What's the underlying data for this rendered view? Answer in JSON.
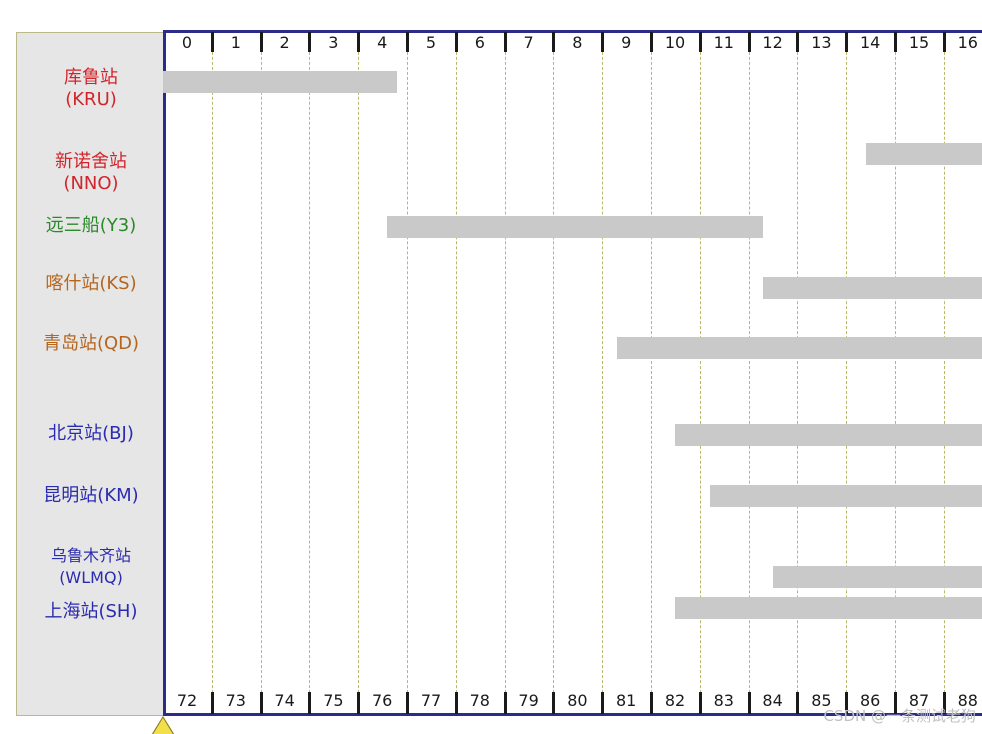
{
  "chart_data": {
    "type": "gantt",
    "top_ticks": [
      "0",
      "1",
      "2",
      "3",
      "4",
      "5",
      "6",
      "7",
      "8",
      "9",
      "10",
      "11",
      "12",
      "13",
      "14",
      "15",
      "16"
    ],
    "bottom_ticks": [
      "72",
      "73",
      "74",
      "75",
      "76",
      "77",
      "78",
      "79",
      "80",
      "81",
      "82",
      "83",
      "84",
      "85",
      "86",
      "87",
      "88"
    ],
    "stations": [
      {
        "label": "库鲁站\n(KRU)",
        "color": "#d4242b",
        "bar_start": 0,
        "bar_end": 4.8
      },
      {
        "label": "新诺舍站\n(NNO)",
        "color": "#d4242b",
        "bar_start": 14.4,
        "bar_end": 16.8
      },
      {
        "label": "远三船(Y3)",
        "color": "#2a8a2a",
        "bar_start": 4.6,
        "bar_end": 12.3
      },
      {
        "label": "喀什站(KS)",
        "color": "#b5651d",
        "bar_start": 12.3,
        "bar_end": 16.8
      },
      {
        "label": "青岛站(QD)",
        "color": "#b5651d",
        "bar_start": 9.3,
        "bar_end": 16.8
      },
      {
        "label": "北京站(BJ)",
        "color": "#2b2bb0",
        "bar_start": 10.5,
        "bar_end": 16.8
      },
      {
        "label": "昆明站(KM)",
        "color": "#2b2bb0",
        "bar_start": 11.2,
        "bar_end": 16.8
      },
      {
        "label": "乌鲁木齐站\n(WLMQ)",
        "color": "#2b2bb0",
        "bar_start": 12.5,
        "bar_end": 16.8
      },
      {
        "label": "上海站(SH)",
        "color": "#2b2bb0",
        "bar_start": 10.5,
        "bar_end": 16.8
      }
    ]
  },
  "watermark": "CSDN @一条测试老狗"
}
